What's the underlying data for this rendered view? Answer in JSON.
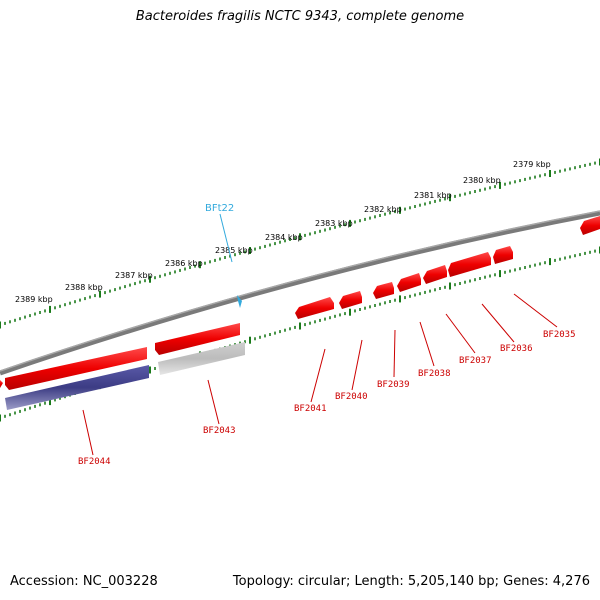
{
  "title": "Bacteroides fragilis NCTC 9343, complete genome",
  "footer": {
    "accession": "Accession: NC_003228",
    "summary": "Topology: circular; Length: 5,205,140 bp; Genes: 4,276"
  },
  "colors": {
    "backbone": "#808080",
    "forward_gene": "#ee0000",
    "reverse_gene": "#3c3c84",
    "pseudo_gene": "#bcbcbc",
    "tick": "#1a7a1a",
    "gene_label": "#cc0000",
    "trna": "#33aadd"
  },
  "scale_labels": [
    "2389 kbp",
    "2388 kbp",
    "2387 kbp",
    "2386 kbp",
    "2385 kbp",
    "2384 kbp",
    "2383 kbp",
    "2382 kbp",
    "2381 kbp",
    "2380 kbp",
    "2379 kbp"
  ],
  "trna_label": "BFt22",
  "gene_labels": [
    "BF2044",
    "BF2043",
    "BF2041",
    "BF2040",
    "BF2039",
    "BF2038",
    "BF2037",
    "BF2036",
    "BF2035"
  ]
}
